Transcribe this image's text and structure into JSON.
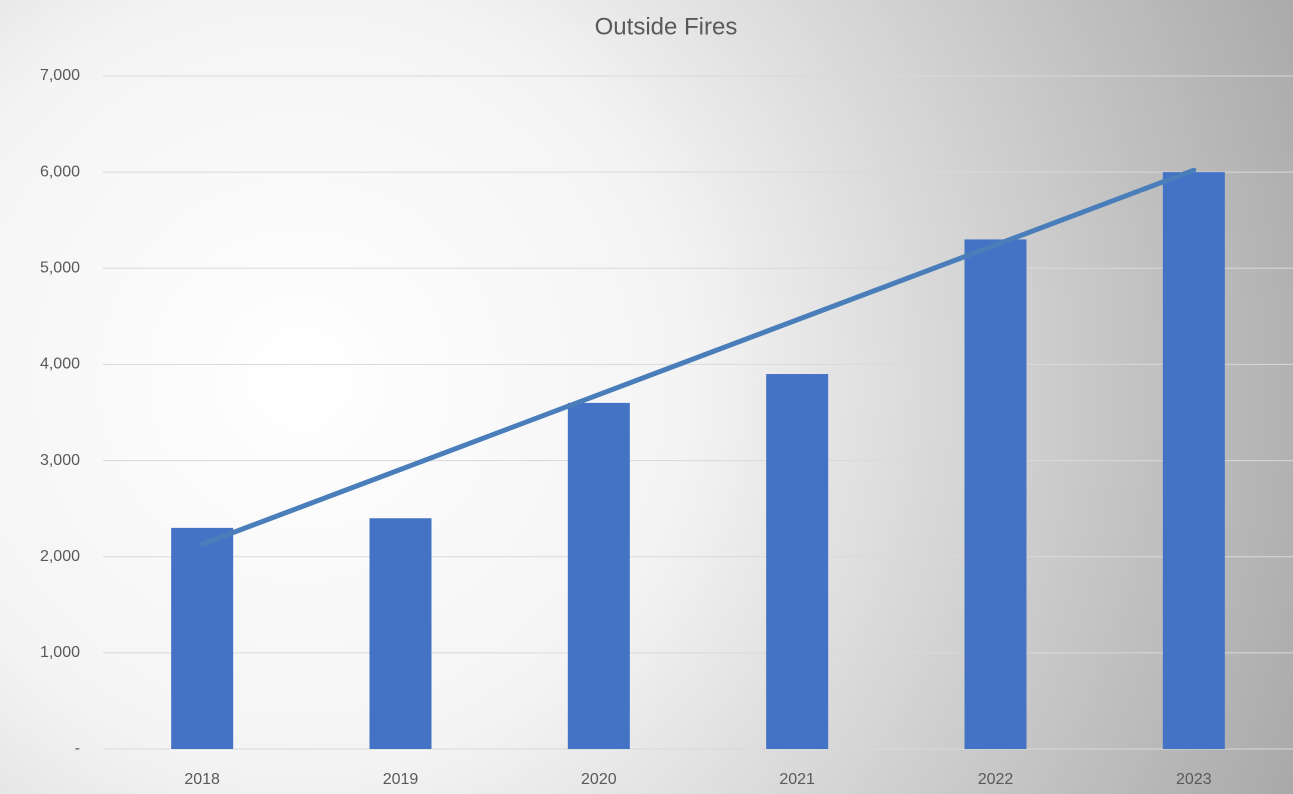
{
  "chart_data": {
    "type": "bar",
    "title": "Outside Fires",
    "categories": [
      "2018",
      "2019",
      "2020",
      "2021",
      "2022",
      "2023"
    ],
    "values": [
      2300,
      2400,
      3600,
      3900,
      5300,
      6000
    ],
    "color": "#4472c4",
    "trendline": [
      2130,
      6020
    ],
    "trendline_color": "#4a7ebb",
    "ylim": [
      0,
      7000
    ],
    "yticks": [
      {
        "value": 0,
        "label": "-"
      },
      {
        "value": 1000,
        "label": "1,000"
      },
      {
        "value": 2000,
        "label": "2,000"
      },
      {
        "value": 3000,
        "label": "3,000"
      },
      {
        "value": 4000,
        "label": "4,000"
      },
      {
        "value": 5000,
        "label": "5,000"
      },
      {
        "value": 6000,
        "label": "6,000"
      },
      {
        "value": 7000,
        "label": "7,000"
      }
    ],
    "grid": true
  }
}
